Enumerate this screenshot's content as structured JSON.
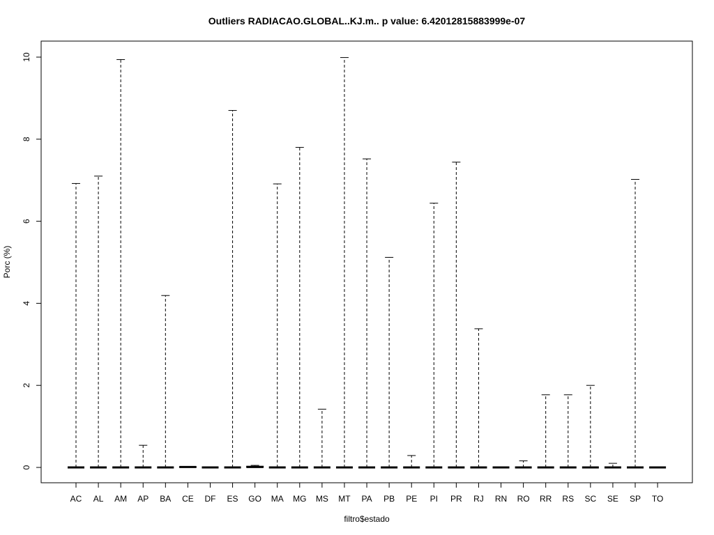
{
  "chart_data": {
    "type": "boxplot",
    "title": "Outliers RADIACAO.GLOBAL..KJ.m.. p value: 6.42012815883999e-07",
    "xlabel": "filtro$estado",
    "ylabel": "Porc (%)",
    "ylim": [
      -0.4,
      10.4
    ],
    "yticks": [
      0,
      2,
      4,
      6,
      8,
      10
    ],
    "grid": false,
    "categories": [
      "AC",
      "AL",
      "AM",
      "AP",
      "BA",
      "CE",
      "DF",
      "ES",
      "GO",
      "MA",
      "MG",
      "MS",
      "MT",
      "PA",
      "PB",
      "PE",
      "PI",
      "PR",
      "RJ",
      "RN",
      "RO",
      "RR",
      "RS",
      "SC",
      "SE",
      "SP",
      "TO"
    ],
    "series": [
      {
        "median": [
          0,
          0,
          0,
          0,
          0,
          0.01,
          0,
          0,
          0.01,
          0,
          0,
          0,
          0,
          0,
          0,
          0,
          0,
          0,
          0,
          0,
          0,
          0,
          0,
          0,
          0,
          0,
          0
        ],
        "q1": [
          0,
          0,
          0,
          0,
          0,
          0,
          0,
          0,
          0,
          0,
          0,
          0,
          0,
          0,
          0,
          0,
          0,
          0,
          0,
          0,
          0,
          0,
          0,
          0,
          0,
          0,
          0
        ],
        "q3": [
          0,
          0,
          0,
          0,
          0,
          0.02,
          0,
          0,
          0.03,
          0,
          0,
          0,
          0,
          0,
          0,
          0,
          0,
          0,
          0,
          0,
          0,
          0,
          0,
          0,
          0,
          0,
          0
        ],
        "whisker_low": [
          0,
          0,
          0,
          0,
          0,
          0,
          0,
          0,
          0,
          0,
          0,
          0,
          0,
          0,
          0,
          0,
          0,
          0,
          0,
          0,
          0,
          0,
          0,
          0,
          0,
          0,
          0
        ],
        "whisker_high": [
          6.92,
          7.1,
          9.94,
          0.54,
          4.19,
          0.02,
          0,
          8.7,
          0.05,
          6.91,
          7.8,
          1.42,
          9.99,
          7.52,
          5.12,
          0.29,
          6.44,
          7.44,
          3.38,
          0,
          0.16,
          1.77,
          1.77,
          2.0,
          0.1,
          7.02,
          0
        ]
      }
    ]
  }
}
